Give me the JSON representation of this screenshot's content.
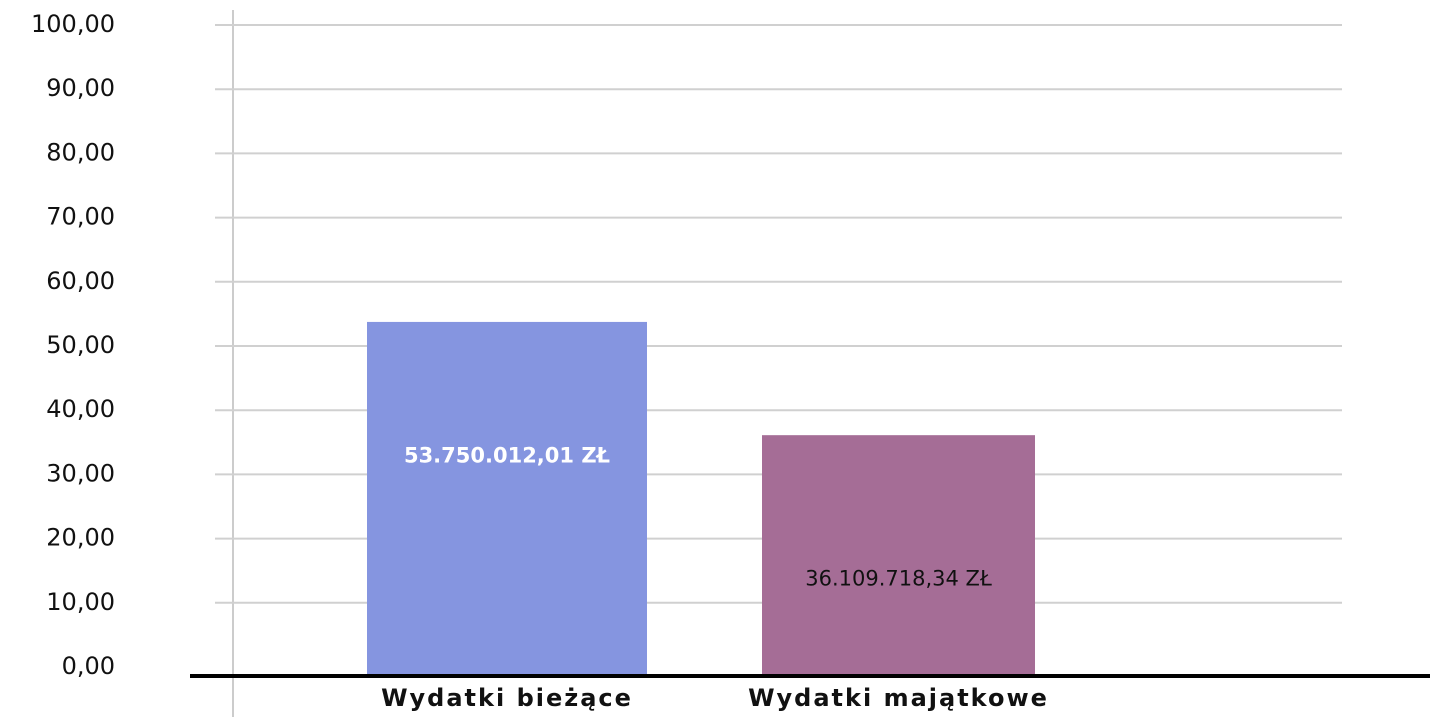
{
  "chart_data": {
    "type": "bar",
    "categories": [
      "Wydatki bieżące",
      "Wydatki majątkowe"
    ],
    "values": [
      53.75001201,
      36.10971834
    ],
    "value_labels": [
      "53.750.012,01 ZŁ",
      "36.109.718,34 ZŁ"
    ],
    "colors": [
      "#8595e0",
      "#a56d96"
    ],
    "ylim": [
      0,
      100
    ],
    "yticks": [
      {
        "value": 0,
        "label": "0,00"
      },
      {
        "value": 10,
        "label": "10,00"
      },
      {
        "value": 20,
        "label": "20,00"
      },
      {
        "value": 30,
        "label": "30,00"
      },
      {
        "value": 40,
        "label": "40,00"
      },
      {
        "value": 50,
        "label": "50,00"
      },
      {
        "value": 60,
        "label": "60,00"
      },
      {
        "value": 70,
        "label": "70,00"
      },
      {
        "value": 80,
        "label": "80,00"
      },
      {
        "value": 90,
        "label": "90,00"
      },
      {
        "value": 100,
        "label": "100,00"
      }
    ],
    "grid": true
  }
}
